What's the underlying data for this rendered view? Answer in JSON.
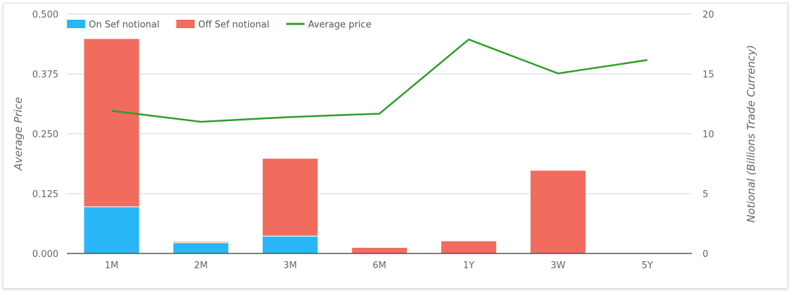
{
  "chart_data": {
    "type": "bar",
    "stacked": true,
    "categories": [
      "1M",
      "2M",
      "3M",
      "6M",
      "1Y",
      "3W",
      "5Y"
    ],
    "series": [
      {
        "name": "On Sef notional",
        "kind": "bar",
        "axis": "right",
        "color": "#29b6f6",
        "values": [
          3.9,
          0.9,
          1.45,
          0,
          0,
          0,
          0
        ]
      },
      {
        "name": "Off Sef notional",
        "kind": "bar",
        "axis": "right",
        "color": "#f26b5f",
        "values": [
          14.05,
          0.1,
          6.5,
          0.5,
          1.05,
          6.95,
          0
        ]
      },
      {
        "name": "Average price",
        "kind": "line",
        "axis": "left",
        "color": "#2e9e28",
        "values": [
          0.298,
          0.275,
          0.285,
          0.292,
          0.447,
          0.376,
          0.404
        ]
      }
    ],
    "ylabel_left": "Average Price",
    "ylabel_right": "Notional (Billions Trade Currency)",
    "ylim_left": [
      0,
      0.5
    ],
    "ylim_right": [
      0,
      20
    ],
    "yticks_left": [
      "0.000",
      "0.125",
      "0.250",
      "0.375",
      "0.500"
    ],
    "yticks_right": [
      "0",
      "5",
      "10",
      "15",
      "20"
    ],
    "grid": true,
    "legend_position": "top-left"
  }
}
